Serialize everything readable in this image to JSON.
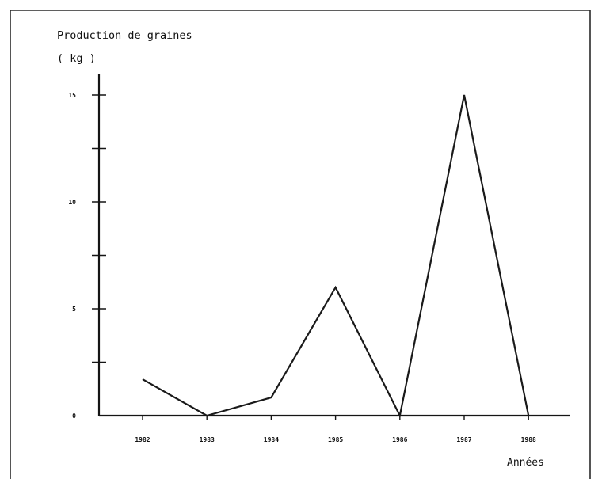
{
  "chart_data": {
    "type": "line",
    "categories": [
      "1982",
      "1983",
      "1984",
      "1985",
      "1986",
      "1987",
      "1988"
    ],
    "values": [
      1.7,
      0,
      0.85,
      6,
      0,
      15,
      0
    ],
    "title": "",
    "ylabel": "Production de graines",
    "yunit": "( kg )",
    "xlabel": "Années",
    "ylim": [
      0,
      16
    ],
    "yticks": [
      0,
      5,
      10,
      15
    ],
    "minor_ytick_step": 2.5,
    "grid": false,
    "legend": "none"
  },
  "colors": {
    "line": "#1a1a1a",
    "background": "#ffffff"
  }
}
